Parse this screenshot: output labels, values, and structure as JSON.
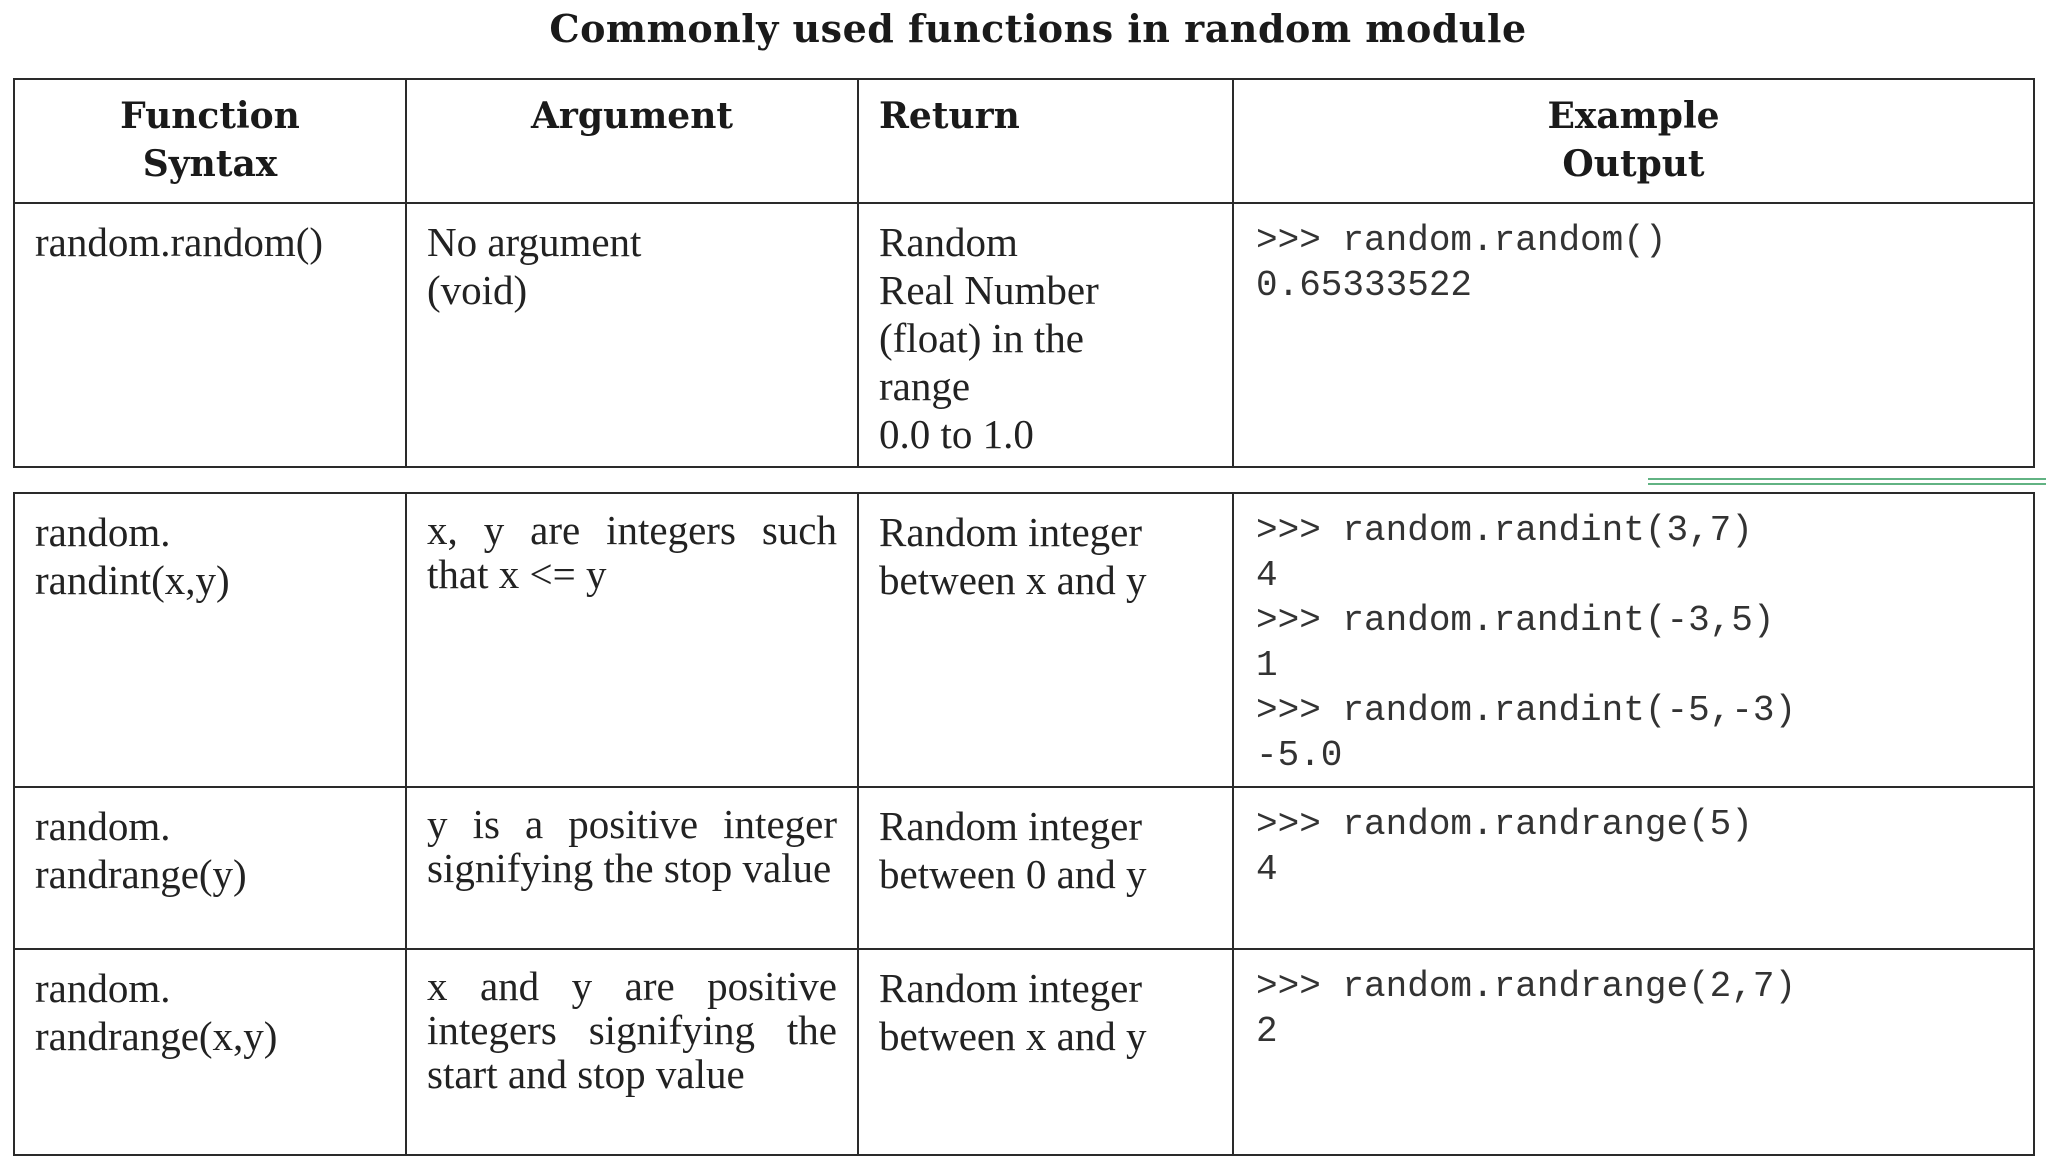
{
  "title": "Commonly used functions in random module",
  "headers": {
    "function_syntax": [
      "Function",
      "Syntax"
    ],
    "argument": "Argument",
    "return": "Return",
    "example_output": [
      "Example",
      "Output"
    ]
  },
  "rows": [
    {
      "syntax": [
        "random.random()"
      ],
      "argument": [
        "No argument",
        "(void)"
      ],
      "return": [
        "Random",
        "Real Number",
        "(float) in the",
        "range",
        "0.0 to 1.0"
      ],
      "example": [
        ">>> random.random()",
        "0.65333522"
      ]
    },
    {
      "syntax": [
        "random.",
        "randint(x,y)"
      ],
      "argument": "x, y are integers such that x <= y",
      "return": [
        "Random integer",
        "between x and y"
      ],
      "example": [
        ">>> random.randint(3,7)",
        "4",
        ">>> random.randint(-3,5)",
        "1",
        ">>> random.randint(-5,-3)",
        "-5.0"
      ]
    },
    {
      "syntax": [
        "random.",
        "randrange(y)"
      ],
      "argument": "y is a positive integer signifying the stop value",
      "return": [
        "Random integer",
        "between 0 and y"
      ],
      "example": [
        ">>> random.randrange(5)",
        "4"
      ]
    },
    {
      "syntax": [
        "random.",
        "randrange(x,y)"
      ],
      "argument": "x and y are positive integers signifying the start and stop value",
      "return": [
        "Random integer",
        "between x and y"
      ],
      "example": [
        ">>> random.randrange(2,7)",
        "2"
      ]
    }
  ],
  "decoration_color": "#2e9a5a"
}
